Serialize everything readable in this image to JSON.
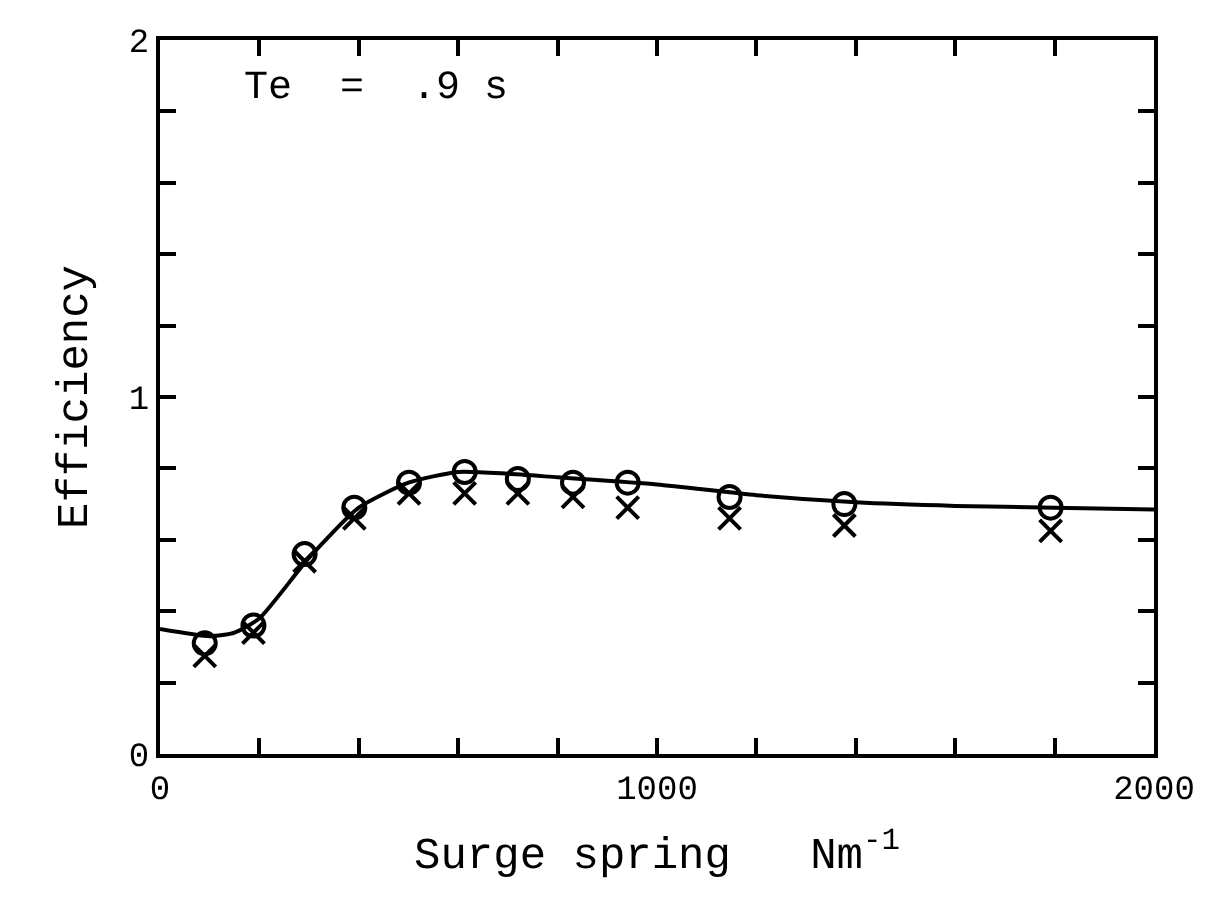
{
  "chart_data": {
    "type": "line",
    "xlabel": "Surge spring   Nm$^{-1}$",
    "ylabel": "Efficiency",
    "annotations": [
      "Te  =  .9 s"
    ],
    "xlim": [
      0,
      2000
    ],
    "ylim": [
      0,
      2
    ],
    "xticks": [
      0,
      {
        "value": 200,
        "label": null
      },
      {
        "value": 400,
        "label": null
      },
      {
        "value": 600,
        "label": null
      },
      {
        "value": 800,
        "label": null
      },
      1000,
      {
        "value": 1200,
        "label": null
      },
      {
        "value": 1400,
        "label": null
      },
      {
        "value": 1600,
        "label": null
      },
      {
        "value": 1800,
        "label": null
      },
      2000
    ],
    "yticks": [
      0,
      {
        "value": 0.2,
        "label": null
      },
      {
        "value": 0.4,
        "label": null
      },
      {
        "value": 0.6,
        "label": null
      },
      {
        "value": 0.8,
        "label": null
      },
      1,
      {
        "value": 1.2,
        "label": null
      },
      {
        "value": 1.4,
        "label": null
      },
      {
        "value": 1.6,
        "label": null
      },
      {
        "value": 1.8,
        "label": null
      },
      2
    ],
    "grid": false,
    "series": [
      {
        "color": "#000000",
        "marker": "none",
        "line_style": "solid",
        "x": [
          0,
          100,
          150,
          200,
          300,
          400,
          500,
          600,
          700,
          800,
          1000,
          1200,
          1400,
          1600,
          1800,
          2000
        ],
        "values": [
          0.35,
          0.33,
          0.34,
          0.38,
          0.55,
          0.69,
          0.76,
          0.79,
          0.785,
          0.775,
          0.755,
          0.725,
          0.705,
          0.695,
          0.69,
          0.685
        ]
      },
      {
        "type": "scatter",
        "color": "#000000",
        "marker": "circle",
        "x": [
          90,
          188,
          291,
          391,
          501,
          613,
          720,
          831,
          941,
          1146,
          1377,
          1792
        ],
        "values": [
          0.31,
          0.36,
          0.56,
          0.69,
          0.76,
          0.79,
          0.77,
          0.76,
          0.76,
          0.72,
          0.7,
          0.69
        ]
      },
      {
        "type": "scatter",
        "color": "#000000",
        "marker": "cross",
        "x": [
          90,
          188,
          291,
          391,
          501,
          613,
          720,
          831,
          941,
          1146,
          1377,
          1792
        ],
        "values": [
          0.275,
          0.34,
          0.54,
          0.66,
          0.73,
          0.73,
          0.73,
          0.72,
          0.69,
          0.66,
          0.64,
          0.625
        ]
      }
    ]
  }
}
